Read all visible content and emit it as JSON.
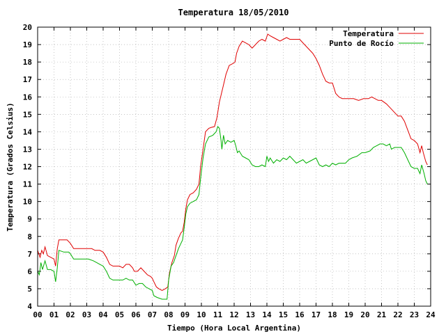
{
  "chart_data": {
    "type": "line",
    "title": "Temperatura 18/05/2010",
    "xlabel": "Tiempo (Hora Local Argentina)",
    "ylabel": "Temperatura (Grados Celsius)",
    "xlim": [
      0,
      24
    ],
    "ylim": [
      4,
      20
    ],
    "x_ticks": [
      "00",
      "01",
      "02",
      "03",
      "04",
      "05",
      "06",
      "07",
      "08",
      "09",
      "10",
      "11",
      "12",
      "13",
      "14",
      "15",
      "16",
      "17",
      "18",
      "19",
      "20",
      "21",
      "22",
      "23",
      "24"
    ],
    "y_ticks": [
      "4",
      "5",
      "6",
      "7",
      "8",
      "9",
      "10",
      "11",
      "12",
      "13",
      "14",
      "15",
      "16",
      "17",
      "18",
      "19",
      "20"
    ],
    "grid": true,
    "legend_position": "top-right",
    "colors": {
      "Temperatura": "#e00000",
      "Punto de Rocío": "#00b000"
    },
    "series": [
      {
        "name": "Temperatura",
        "points": [
          [
            0.0,
            7.2
          ],
          [
            0.15,
            6.8
          ],
          [
            0.25,
            7.2
          ],
          [
            0.35,
            7.0
          ],
          [
            0.45,
            7.4
          ],
          [
            0.6,
            6.9
          ],
          [
            0.8,
            6.8
          ],
          [
            1.0,
            6.7
          ],
          [
            1.1,
            6.3
          ],
          [
            1.2,
            7.3
          ],
          [
            1.3,
            7.8
          ],
          [
            1.5,
            7.8
          ],
          [
            1.8,
            7.8
          ],
          [
            2.0,
            7.6
          ],
          [
            2.2,
            7.3
          ],
          [
            2.5,
            7.3
          ],
          [
            2.8,
            7.3
          ],
          [
            3.0,
            7.3
          ],
          [
            3.3,
            7.3
          ],
          [
            3.5,
            7.2
          ],
          [
            3.8,
            7.2
          ],
          [
            4.0,
            7.1
          ],
          [
            4.2,
            6.8
          ],
          [
            4.4,
            6.4
          ],
          [
            4.6,
            6.3
          ],
          [
            4.8,
            6.3
          ],
          [
            5.0,
            6.3
          ],
          [
            5.2,
            6.2
          ],
          [
            5.4,
            6.4
          ],
          [
            5.6,
            6.4
          ],
          [
            5.8,
            6.2
          ],
          [
            5.9,
            6.0
          ],
          [
            6.1,
            6.0
          ],
          [
            6.3,
            6.2
          ],
          [
            6.5,
            6.0
          ],
          [
            6.7,
            5.8
          ],
          [
            6.9,
            5.7
          ],
          [
            7.0,
            5.6
          ],
          [
            7.1,
            5.4
          ],
          [
            7.25,
            5.1
          ],
          [
            7.4,
            5.0
          ],
          [
            7.6,
            4.9
          ],
          [
            7.8,
            5.0
          ],
          [
            7.95,
            5.1
          ],
          [
            8.05,
            5.9
          ],
          [
            8.2,
            6.5
          ],
          [
            8.35,
            6.9
          ],
          [
            8.45,
            7.5
          ],
          [
            8.6,
            7.9
          ],
          [
            8.75,
            8.2
          ],
          [
            8.85,
            8.3
          ],
          [
            8.95,
            8.8
          ],
          [
            9.05,
            9.6
          ],
          [
            9.15,
            10.1
          ],
          [
            9.3,
            10.4
          ],
          [
            9.5,
            10.5
          ],
          [
            9.7,
            10.7
          ],
          [
            9.85,
            11.0
          ],
          [
            9.95,
            12.0
          ],
          [
            10.1,
            13.0
          ],
          [
            10.25,
            14.0
          ],
          [
            10.45,
            14.2
          ],
          [
            10.6,
            14.25
          ],
          [
            10.8,
            14.3
          ],
          [
            10.95,
            14.8
          ],
          [
            11.1,
            15.7
          ],
          [
            11.3,
            16.5
          ],
          [
            11.5,
            17.3
          ],
          [
            11.7,
            17.8
          ],
          [
            11.9,
            17.9
          ],
          [
            12.05,
            18.0
          ],
          [
            12.15,
            18.5
          ],
          [
            12.3,
            18.9
          ],
          [
            12.5,
            19.2
          ],
          [
            12.7,
            19.1
          ],
          [
            12.9,
            19.0
          ],
          [
            13.1,
            18.8
          ],
          [
            13.3,
            19.0
          ],
          [
            13.5,
            19.2
          ],
          [
            13.7,
            19.3
          ],
          [
            13.9,
            19.2
          ],
          [
            14.05,
            19.6
          ],
          [
            14.2,
            19.5
          ],
          [
            14.4,
            19.4
          ],
          [
            14.6,
            19.3
          ],
          [
            14.8,
            19.2
          ],
          [
            15.0,
            19.3
          ],
          [
            15.2,
            19.4
          ],
          [
            15.4,
            19.3
          ],
          [
            15.6,
            19.3
          ],
          [
            15.8,
            19.3
          ],
          [
            16.0,
            19.3
          ],
          [
            16.2,
            19.1
          ],
          [
            16.4,
            18.9
          ],
          [
            16.6,
            18.7
          ],
          [
            16.8,
            18.5
          ],
          [
            17.0,
            18.2
          ],
          [
            17.2,
            17.8
          ],
          [
            17.4,
            17.3
          ],
          [
            17.6,
            16.9
          ],
          [
            17.8,
            16.8
          ],
          [
            18.0,
            16.8
          ],
          [
            18.2,
            16.2
          ],
          [
            18.4,
            16.0
          ],
          [
            18.6,
            15.9
          ],
          [
            18.8,
            15.9
          ],
          [
            19.0,
            15.9
          ],
          [
            19.3,
            15.9
          ],
          [
            19.6,
            15.8
          ],
          [
            19.9,
            15.9
          ],
          [
            20.2,
            15.9
          ],
          [
            20.4,
            16.0
          ],
          [
            20.6,
            15.9
          ],
          [
            20.8,
            15.8
          ],
          [
            21.0,
            15.8
          ],
          [
            21.3,
            15.6
          ],
          [
            21.5,
            15.4
          ],
          [
            21.8,
            15.1
          ],
          [
            22.0,
            14.9
          ],
          [
            22.2,
            14.9
          ],
          [
            22.4,
            14.6
          ],
          [
            22.6,
            14.1
          ],
          [
            22.8,
            13.6
          ],
          [
            23.0,
            13.5
          ],
          [
            23.2,
            13.3
          ],
          [
            23.35,
            12.8
          ],
          [
            23.45,
            13.2
          ],
          [
            23.55,
            12.8
          ],
          [
            23.7,
            12.3
          ],
          [
            23.8,
            12.1
          ]
        ]
      },
      {
        "name": "Punto de Rocío",
        "points": [
          [
            0.0,
            6.0
          ],
          [
            0.1,
            5.8
          ],
          [
            0.2,
            6.5
          ],
          [
            0.3,
            6.1
          ],
          [
            0.45,
            6.6
          ],
          [
            0.6,
            6.1
          ],
          [
            0.8,
            6.1
          ],
          [
            1.0,
            6.0
          ],
          [
            1.1,
            5.4
          ],
          [
            1.2,
            6.2
          ],
          [
            1.3,
            7.2
          ],
          [
            1.6,
            7.1
          ],
          [
            1.9,
            7.1
          ],
          [
            2.0,
            7.0
          ],
          [
            2.2,
            6.7
          ],
          [
            2.5,
            6.7
          ],
          [
            2.8,
            6.7
          ],
          [
            3.1,
            6.7
          ],
          [
            3.4,
            6.6
          ],
          [
            3.6,
            6.5
          ],
          [
            3.8,
            6.4
          ],
          [
            4.0,
            6.3
          ],
          [
            4.2,
            6.0
          ],
          [
            4.4,
            5.6
          ],
          [
            4.6,
            5.5
          ],
          [
            4.8,
            5.5
          ],
          [
            5.0,
            5.5
          ],
          [
            5.2,
            5.5
          ],
          [
            5.4,
            5.6
          ],
          [
            5.6,
            5.5
          ],
          [
            5.8,
            5.5
          ],
          [
            6.0,
            5.2
          ],
          [
            6.2,
            5.3
          ],
          [
            6.4,
            5.3
          ],
          [
            6.6,
            5.1
          ],
          [
            6.8,
            5.0
          ],
          [
            7.0,
            4.9
          ],
          [
            7.1,
            4.6
          ],
          [
            7.3,
            4.5
          ],
          [
            7.6,
            4.4
          ],
          [
            7.9,
            4.4
          ],
          [
            8.0,
            5.5
          ],
          [
            8.15,
            6.3
          ],
          [
            8.3,
            6.5
          ],
          [
            8.45,
            6.9
          ],
          [
            8.6,
            7.3
          ],
          [
            8.75,
            7.6
          ],
          [
            8.85,
            7.8
          ],
          [
            8.95,
            8.5
          ],
          [
            9.05,
            9.3
          ],
          [
            9.15,
            9.7
          ],
          [
            9.3,
            9.9
          ],
          [
            9.5,
            10.0
          ],
          [
            9.7,
            10.1
          ],
          [
            9.85,
            10.4
          ],
          [
            9.95,
            11.3
          ],
          [
            10.1,
            12.5
          ],
          [
            10.25,
            13.3
          ],
          [
            10.45,
            13.7
          ],
          [
            10.7,
            13.8
          ],
          [
            10.9,
            14.0
          ],
          [
            11.0,
            14.3
          ],
          [
            11.1,
            14.2
          ],
          [
            11.2,
            13.5
          ],
          [
            11.25,
            13.0
          ],
          [
            11.35,
            13.8
          ],
          [
            11.45,
            13.3
          ],
          [
            11.6,
            13.5
          ],
          [
            11.8,
            13.4
          ],
          [
            12.0,
            13.5
          ],
          [
            12.1,
            13.2
          ],
          [
            12.2,
            12.8
          ],
          [
            12.3,
            12.9
          ],
          [
            12.5,
            12.6
          ],
          [
            12.7,
            12.5
          ],
          [
            12.9,
            12.4
          ],
          [
            13.1,
            12.1
          ],
          [
            13.3,
            12.0
          ],
          [
            13.5,
            12.0
          ],
          [
            13.7,
            12.1
          ],
          [
            13.9,
            12.0
          ],
          [
            14.0,
            12.6
          ],
          [
            14.1,
            12.3
          ],
          [
            14.2,
            12.5
          ],
          [
            14.4,
            12.2
          ],
          [
            14.6,
            12.4
          ],
          [
            14.8,
            12.3
          ],
          [
            15.0,
            12.5
          ],
          [
            15.2,
            12.4
          ],
          [
            15.4,
            12.6
          ],
          [
            15.6,
            12.4
          ],
          [
            15.8,
            12.2
          ],
          [
            16.0,
            12.3
          ],
          [
            16.2,
            12.4
          ],
          [
            16.4,
            12.2
          ],
          [
            16.6,
            12.3
          ],
          [
            16.8,
            12.4
          ],
          [
            17.0,
            12.5
          ],
          [
            17.2,
            12.1
          ],
          [
            17.4,
            12.0
          ],
          [
            17.6,
            12.1
          ],
          [
            17.8,
            12.0
          ],
          [
            18.0,
            12.2
          ],
          [
            18.2,
            12.1
          ],
          [
            18.4,
            12.2
          ],
          [
            18.6,
            12.2
          ],
          [
            18.8,
            12.2
          ],
          [
            19.0,
            12.4
          ],
          [
            19.2,
            12.5
          ],
          [
            19.5,
            12.6
          ],
          [
            19.8,
            12.8
          ],
          [
            20.0,
            12.8
          ],
          [
            20.3,
            12.9
          ],
          [
            20.5,
            13.1
          ],
          [
            20.7,
            13.2
          ],
          [
            20.9,
            13.3
          ],
          [
            21.1,
            13.3
          ],
          [
            21.3,
            13.2
          ],
          [
            21.5,
            13.3
          ],
          [
            21.6,
            13.0
          ],
          [
            21.8,
            13.1
          ],
          [
            22.0,
            13.1
          ],
          [
            22.2,
            13.1
          ],
          [
            22.4,
            12.8
          ],
          [
            22.6,
            12.4
          ],
          [
            22.8,
            12.0
          ],
          [
            23.0,
            11.9
          ],
          [
            23.2,
            11.9
          ],
          [
            23.35,
            11.6
          ],
          [
            23.45,
            12.1
          ],
          [
            23.6,
            11.6
          ],
          [
            23.7,
            11.2
          ],
          [
            23.8,
            11.0
          ]
        ]
      }
    ]
  }
}
